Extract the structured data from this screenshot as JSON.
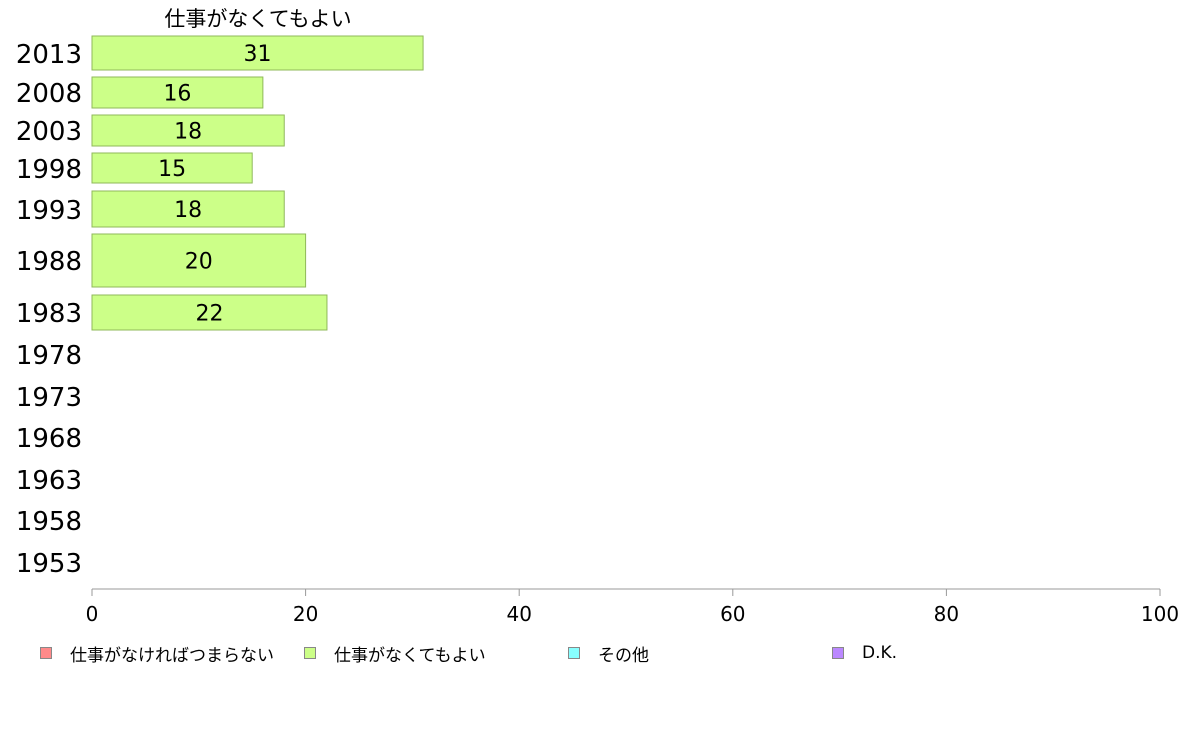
{
  "chart_data": {
    "type": "bar",
    "orientation": "horizontal",
    "stacked": true,
    "series_title": "仕事がなくてもよい",
    "categories": [
      "2013",
      "2008",
      "2003",
      "1998",
      "1993",
      "1988",
      "1983",
      "1978",
      "1973",
      "1968",
      "1963",
      "1958",
      "1953"
    ],
    "series": [
      {
        "name": "仕事がなければつまらない",
        "color": "#ff8a8a",
        "values": [
          null,
          null,
          null,
          null,
          null,
          null,
          null,
          null,
          null,
          null,
          null,
          null,
          null
        ]
      },
      {
        "name": "仕事がなくてもよい",
        "color": "#ccff88",
        "values": [
          31,
          16,
          18,
          15,
          18,
          20,
          22,
          null,
          null,
          null,
          null,
          null,
          null
        ]
      },
      {
        "name": "その他",
        "color": "#88ffff",
        "values": [
          null,
          null,
          null,
          null,
          null,
          null,
          null,
          null,
          null,
          null,
          null,
          null,
          null
        ]
      },
      {
        "name": "D.K.",
        "color": "#bb88ff",
        "values": [
          null,
          null,
          null,
          null,
          null,
          null,
          null,
          null,
          null,
          null,
          null,
          null,
          null
        ]
      }
    ],
    "xlim": [
      0,
      100
    ],
    "xticks": [
      0,
      20,
      40,
      60,
      80,
      100
    ],
    "grid": false,
    "legend_position": "bottom"
  }
}
